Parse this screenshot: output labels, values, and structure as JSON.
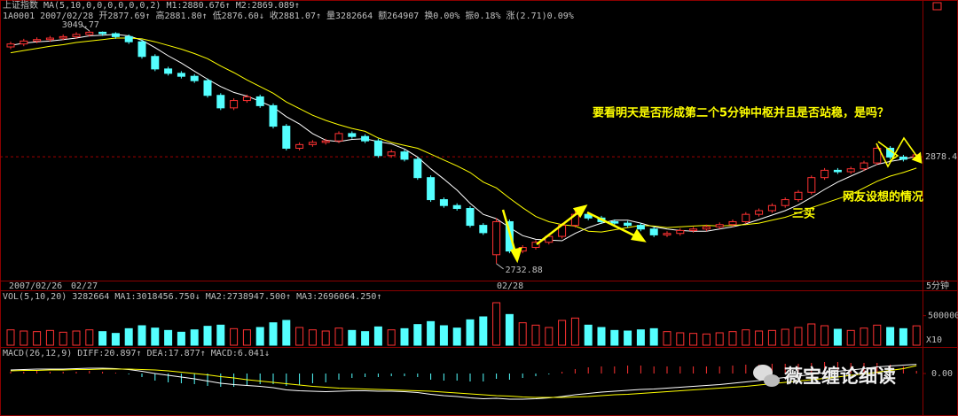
{
  "header": {
    "line1": [
      "上证指数",
      "MA(5,10,0,0,0,0,0,0,2)",
      "M1:2880.676↑",
      "M2:2869.089↑"
    ],
    "line2": [
      "1A0001",
      "2007/02/28",
      "开2877.69↑",
      "高2881.80↑",
      "低2876.60↓",
      "收2881.07↑",
      "量3282664",
      "额264907",
      "换0.00%",
      "振0.18%",
      "涨(2.71)0.09%"
    ]
  },
  "chart_data": [
    {
      "type": "candlestick",
      "open": [
        3028,
        3032,
        3036,
        3038,
        3040,
        3042,
        3045,
        3048,
        3046,
        3042,
        3035,
        3015,
        2998,
        2992,
        2988,
        2982,
        2962,
        2945,
        2955,
        2960,
        2948,
        2920,
        2890,
        2895,
        2898,
        2900,
        2910,
        2906,
        2900,
        2880,
        2885,
        2875,
        2850,
        2820,
        2812,
        2808,
        2785,
        2745,
        2790,
        2750,
        2755,
        2762,
        2770,
        2785,
        2800,
        2795,
        2790,
        2788,
        2785,
        2780,
        2772,
        2774,
        2778,
        2780,
        2783,
        2786,
        2790,
        2800,
        2805,
        2812,
        2820,
        2830,
        2850,
        2860,
        2858,
        2862,
        2870,
        2890,
        2878,
        2877.69
      ],
      "high": [
        3035,
        3039,
        3041,
        3043,
        3045,
        3048,
        3049.77,
        3049,
        3048,
        3045,
        3038,
        3018,
        3001,
        2995,
        2991,
        2985,
        2965,
        2958,
        2963,
        2963,
        2951,
        2923,
        2898,
        2901,
        2903,
        2913,
        2913,
        2909,
        2903,
        2888,
        2888,
        2878,
        2853,
        2823,
        2815,
        2811,
        2788,
        2795,
        2793,
        2758,
        2765,
        2773,
        2788,
        2806,
        2803,
        2798,
        2793,
        2791,
        2788,
        2783,
        2777,
        2781,
        2783,
        2786,
        2789,
        2793,
        2803,
        2808,
        2815,
        2823,
        2833,
        2853,
        2863,
        2863,
        2865,
        2873,
        2893,
        2893,
        2881,
        2881.8
      ],
      "low": [
        3025,
        3029,
        3033,
        3035,
        3037,
        3039,
        3042,
        3043,
        3039,
        3032,
        3012,
        2995,
        2989,
        2985,
        2979,
        2959,
        2942,
        2942,
        2952,
        2945,
        2917,
        2887,
        2887,
        2892,
        2895,
        2897,
        2903,
        2897,
        2877,
        2877,
        2872,
        2847,
        2817,
        2809,
        2805,
        2782,
        2772,
        2732.88,
        2747,
        2747,
        2752,
        2759,
        2767,
        2782,
        2792,
        2787,
        2785,
        2782,
        2777,
        2769,
        2769,
        2771,
        2775,
        2777,
        2780,
        2783,
        2787,
        2797,
        2802,
        2809,
        2817,
        2827,
        2847,
        2855,
        2855,
        2859,
        2867,
        2875,
        2872,
        2876.6
      ],
      "close": [
        3032,
        3036,
        3038,
        3040,
        3042,
        3045,
        3048,
        3046,
        3042,
        3035,
        3015,
        2998,
        2992,
        2988,
        2982,
        2962,
        2945,
        2955,
        2960,
        2948,
        2920,
        2890,
        2895,
        2898,
        2900,
        2910,
        2906,
        2900,
        2880,
        2885,
        2875,
        2850,
        2820,
        2812,
        2808,
        2785,
        2775,
        2790,
        2750,
        2755,
        2762,
        2770,
        2785,
        2800,
        2795,
        2790,
        2788,
        2785,
        2780,
        2772,
        2774,
        2778,
        2780,
        2783,
        2786,
        2790,
        2800,
        2805,
        2812,
        2820,
        2830,
        2850,
        2860,
        2858,
        2862,
        2870,
        2890,
        2878,
        2875,
        2881.07
      ],
      "ma_lines": [
        {
          "color": "#ffffff",
          "values": [
            3030,
            3033,
            3035,
            3036,
            3038,
            3040,
            3043,
            3044,
            3045,
            3043,
            3037,
            3027,
            3016,
            3006,
            2995,
            2984,
            2974,
            2966,
            2961,
            2954,
            2946,
            2933,
            2923,
            2910,
            2901,
            2899,
            2902,
            2903,
            2899,
            2896,
            2889,
            2878,
            2862,
            2848,
            2833,
            2815,
            2800,
            2794,
            2782,
            2771,
            2766,
            2765,
            2764,
            2774,
            2782,
            2788,
            2792,
            2792,
            2788,
            2783,
            2780,
            2778,
            2777,
            2777,
            2780,
            2783,
            2787,
            2793,
            2799,
            2805,
            2813,
            2823,
            2834,
            2844,
            2852,
            2860,
            2868,
            2872,
            2875,
            2879
          ]
        },
        {
          "color": "#ffff00",
          "values": [
            3020,
            3023,
            3026,
            3029,
            3031,
            3034,
            3036,
            3038,
            3040,
            3040,
            3039,
            3035,
            3030,
            3025,
            3019,
            3012,
            3002,
            2993,
            2983,
            2974,
            2965,
            2953,
            2944,
            2935,
            2928,
            2922,
            2917,
            2913,
            2904,
            2898,
            2894,
            2890,
            2882,
            2874,
            2866,
            2857,
            2844,
            2836,
            2822,
            2809,
            2797,
            2790,
            2786,
            2784,
            2777,
            2776,
            2779,
            2782,
            2785,
            2784,
            2782,
            2783,
            2784,
            2785,
            2784,
            2785,
            2786,
            2788,
            2792,
            2796,
            2802,
            2809,
            2815,
            2821,
            2827,
            2836,
            2845,
            2852,
            2857,
            2863
          ]
        }
      ],
      "ylim": [
        2711,
        3075
      ],
      "high_label": 3049.77,
      "low_label": 2732.88,
      "last_price": 2878.4,
      "x_labels": [
        "2007/02/26",
        "02/27",
        "02/28"
      ],
      "period": "5分钟"
    },
    {
      "type": "bar",
      "header": [
        "VOL(5,10,20)",
        "3282664",
        "MA1:3018456.750↓",
        "MA2:2738947.500↑",
        "MA3:2696064.250↑"
      ],
      "values": [
        260000,
        240000,
        230000,
        250000,
        220000,
        240000,
        260000,
        230000,
        200000,
        280000,
        330000,
        290000,
        250000,
        220000,
        260000,
        320000,
        340000,
        280000,
        260000,
        300000,
        380000,
        420000,
        300000,
        260000,
        240000,
        290000,
        250000,
        230000,
        310000,
        260000,
        280000,
        350000,
        400000,
        330000,
        290000,
        430000,
        480000,
        720000,
        520000,
        380000,
        340000,
        300000,
        420000,
        460000,
        340000,
        300000,
        250000,
        240000,
        260000,
        280000,
        230000,
        210000,
        200000,
        190000,
        210000,
        230000,
        260000,
        240000,
        250000,
        270000,
        300000,
        360000,
        330000,
        270000,
        250000,
        290000,
        340000,
        300000,
        280000,
        328266
      ],
      "ylim": [
        0,
        750000
      ],
      "yticks": [
        500000
      ],
      "unit_label": "X10"
    },
    {
      "type": "macd",
      "header": [
        "MACD(26,12,9)",
        "DIFF:20.897↑",
        "DEA:17.877↑",
        "MACD:6.041↓"
      ],
      "hist": [
        4,
        4,
        6,
        4,
        4,
        4,
        6,
        4,
        2,
        -2,
        -8,
        -16,
        -20,
        -22,
        -24,
        -28,
        -30,
        -30,
        -26,
        -24,
        -24,
        -28,
        -26,
        -22,
        -20,
        -14,
        -10,
        -8,
        -8,
        -6,
        -6,
        -8,
        -14,
        -16,
        -16,
        -18,
        -18,
        -12,
        -14,
        -10,
        -6,
        -2,
        4,
        10,
        14,
        16,
        16,
        18,
        18,
        16,
        16,
        16,
        16,
        16,
        16,
        18,
        20,
        20,
        22,
        22,
        22,
        24,
        26,
        26,
        24,
        24,
        24,
        20,
        16,
        6.041
      ],
      "diff": [
        8,
        9,
        10,
        10,
        10,
        11,
        12,
        12,
        11,
        9,
        5,
        0,
        -4,
        -8,
        -12,
        -17,
        -22,
        -25,
        -27,
        -29,
        -32,
        -37,
        -39,
        -40,
        -41,
        -40,
        -39,
        -39,
        -40,
        -40,
        -41,
        -43,
        -47,
        -50,
        -52,
        -55,
        -57,
        -56,
        -58,
        -58,
        -57,
        -55,
        -52,
        -48,
        -45,
        -42,
        -40,
        -38,
        -36,
        -35,
        -33,
        -31,
        -29,
        -27,
        -25,
        -22,
        -19,
        -16,
        -12,
        -9,
        -6,
        -2,
        2,
        5,
        8,
        11,
        15,
        17,
        19,
        20.897
      ],
      "dea": [
        6,
        7,
        7,
        8,
        8,
        9,
        9,
        10,
        10,
        10,
        9,
        8,
        6,
        3,
        0,
        -3,
        -7,
        -10,
        -14,
        -17,
        -20,
        -23,
        -26,
        -29,
        -31,
        -33,
        -34,
        -35,
        -36,
        -37,
        -38,
        -39,
        -40,
        -42,
        -44,
        -46,
        -48,
        -50,
        -51,
        -53,
        -54,
        -54,
        -54,
        -53,
        -52,
        -50,
        -48,
        -47,
        -45,
        -43,
        -41,
        -39,
        -37,
        -35,
        -33,
        -31,
        -29,
        -26,
        -23,
        -20,
        -17,
        -14,
        -11,
        -8,
        -4,
        -1,
        3,
        7,
        11,
        17.877
      ],
      "ylim": [
        -88,
        48
      ],
      "yticks": [
        {
          "value": 0,
          "label": "0.00"
        }
      ]
    }
  ],
  "annotations": {
    "question": "要看明天是否形成第二个5分钟中枢并且是否站稳，是吗？",
    "scenario": "网友设想的情况",
    "third_buy": "三买"
  },
  "watermark": "薇宝缠论细读"
}
